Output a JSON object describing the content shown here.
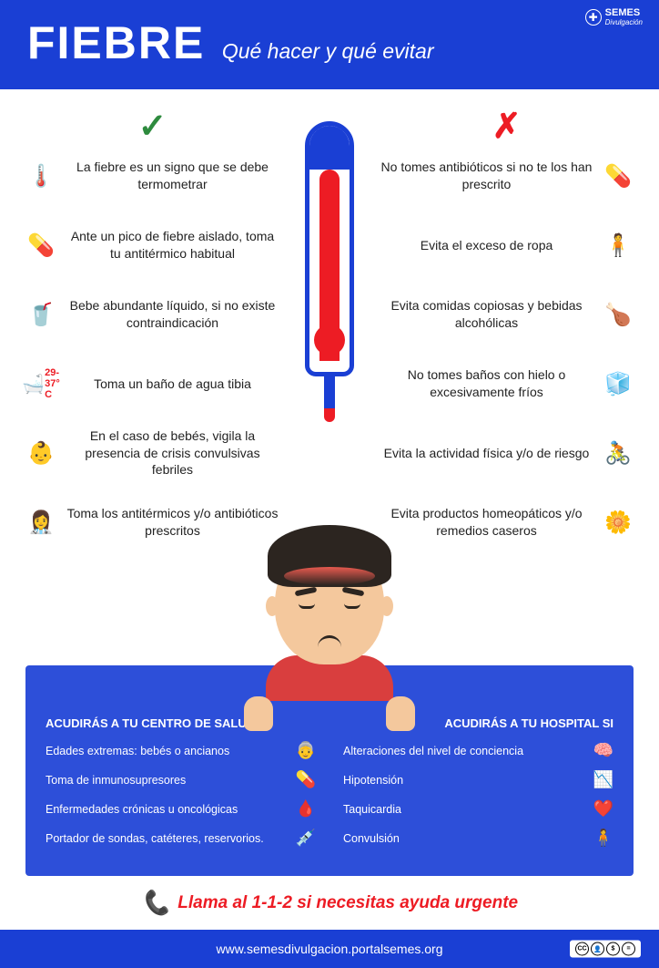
{
  "header": {
    "title": "FIEBRE",
    "subtitle": "Qué hacer y qué evitar",
    "logo_text": "SEMES",
    "logo_sub": "Divulgación"
  },
  "colors": {
    "primary": "#1a3fd4",
    "accent_green": "#2e8b3e",
    "accent_red": "#ed1c24",
    "skin": "#f4c89d",
    "hair": "#2c2520",
    "shirt": "#d93e3e"
  },
  "do_items": [
    {
      "icon": "🌡️",
      "text": "La fiebre es un signo que se debe termometrar"
    },
    {
      "icon": "💊",
      "text": "Ante un pico de fiebre aislado, toma tu antitérmico habitual"
    },
    {
      "icon": "🥤",
      "text": "Bebe abundante líquido, si no existe contraindicación"
    },
    {
      "icon": "🛁",
      "text": "Toma un baño de agua tibia",
      "temp": "29-37° C"
    },
    {
      "icon": "👶",
      "text": "En el caso de bebés, vigila la presencia de crisis convulsivas febriles"
    },
    {
      "icon": "👩‍⚕️",
      "text": "Toma los antitérmicos y/o antibióticos prescritos"
    }
  ],
  "dont_items": [
    {
      "icon": "💊",
      "text": "No tomes antibióticos si no te los han prescrito"
    },
    {
      "icon": "🧍",
      "text": "Evita el exceso de ropa"
    },
    {
      "icon": "🍗",
      "text": "Evita comidas copiosas y bebidas alcohólicas"
    },
    {
      "icon": "🧊",
      "text": "No tomes baños con hielo o excesivamente fríos"
    },
    {
      "icon": "🚴",
      "text": "Evita la actividad física y/o de riesgo"
    },
    {
      "icon": "🌼",
      "text": "Evita productos homeopáticos y/o remedios caseros"
    }
  ],
  "health_center": {
    "title": "ACUDIRÁS A TU CENTRO DE SALUD SI",
    "items": [
      {
        "text": "Edades extremas: bebés o ancianos",
        "icon": "👵"
      },
      {
        "text": "Toma de inmunosupresores",
        "icon": "💊"
      },
      {
        "text": "Enfermedades crónicas u oncológicas",
        "icon": "🩸"
      },
      {
        "text": "Portador de sondas, catéteres, reservorios.",
        "icon": "💉"
      }
    ]
  },
  "hospital": {
    "title": "ACUDIRÁS A TU HOSPITAL SI",
    "items": [
      {
        "text": "Alteraciones del nivel de conciencia",
        "icon": "🧠"
      },
      {
        "text": "Hipotensión",
        "icon": "📉"
      },
      {
        "text": "Taquicardia",
        "icon": "❤️"
      },
      {
        "text": "Convulsión",
        "icon": "🧍"
      }
    ]
  },
  "emergency": "Llama al 1-1-2 si necesitas ayuda urgente",
  "footer": {
    "url": "www.semesdivulgacion.portalsemes.org",
    "license": "CC BY NC ND"
  }
}
